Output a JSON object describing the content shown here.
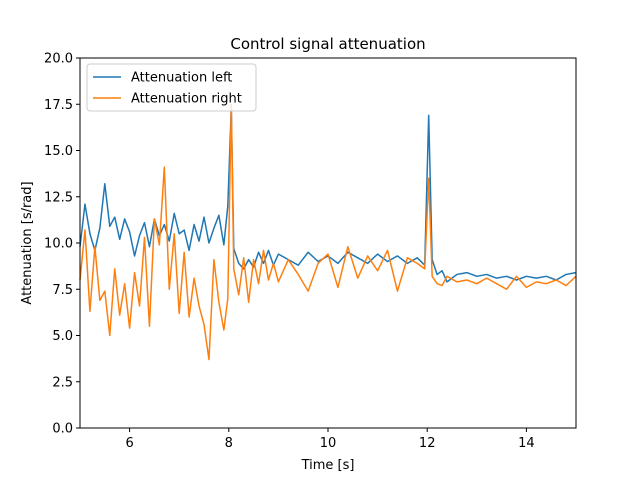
{
  "chart_data": {
    "type": "line",
    "title": "Control signal attenuation",
    "xlabel": "Time [s]",
    "ylabel": "Attenuation [s/rad]",
    "xlim": [
      5,
      15
    ],
    "ylim": [
      0,
      20
    ],
    "xticks": [
      6,
      8,
      10,
      12,
      14
    ],
    "xtick_labels": [
      "6",
      "8",
      "10",
      "12",
      "14"
    ],
    "yticks": [
      0,
      2.5,
      5,
      7.5,
      10,
      12.5,
      15,
      17.5,
      20
    ],
    "ytick_labels": [
      "0.0",
      "2.5",
      "5.0",
      "7.5",
      "10.0",
      "12.5",
      "15.0",
      "17.5",
      "20.0"
    ],
    "grid": false,
    "legend_position": "top-left",
    "series": [
      {
        "name": "Attenuation left",
        "color": "#1f77b4",
        "x": [
          5.0,
          5.1,
          5.2,
          5.3,
          5.4,
          5.5,
          5.6,
          5.7,
          5.8,
          5.9,
          6.0,
          6.1,
          6.2,
          6.3,
          6.4,
          6.5,
          6.6,
          6.7,
          6.8,
          6.9,
          7.0,
          7.1,
          7.2,
          7.3,
          7.4,
          7.5,
          7.6,
          7.7,
          7.8,
          7.9,
          7.98,
          8.05,
          8.1,
          8.2,
          8.3,
          8.4,
          8.5,
          8.6,
          8.7,
          8.8,
          8.9,
          9.0,
          9.2,
          9.4,
          9.6,
          9.8,
          10.0,
          10.2,
          10.4,
          10.6,
          10.8,
          11.0,
          11.2,
          11.4,
          11.6,
          11.8,
          11.95,
          12.03,
          12.1,
          12.2,
          12.3,
          12.4,
          12.6,
          12.8,
          13.0,
          13.2,
          13.4,
          13.6,
          13.8,
          14.0,
          14.2,
          14.4,
          14.6,
          14.8,
          15.0
        ],
        "y": [
          9.8,
          12.1,
          10.5,
          9.6,
          10.8,
          13.2,
          10.9,
          11.4,
          10.2,
          11.3,
          10.6,
          9.3,
          10.4,
          11.1,
          9.8,
          11.3,
          10.4,
          11.0,
          10.1,
          11.6,
          10.5,
          10.7,
          9.6,
          11.0,
          10.1,
          11.4,
          10.0,
          10.8,
          11.5,
          9.9,
          12.0,
          17.3,
          9.7,
          8.9,
          8.6,
          9.1,
          8.7,
          9.5,
          8.9,
          9.6,
          8.8,
          9.4,
          9.1,
          8.8,
          9.5,
          9.0,
          9.3,
          8.9,
          9.5,
          9.2,
          8.9,
          9.4,
          9.0,
          9.3,
          8.9,
          9.2,
          8.8,
          16.9,
          9.1,
          8.3,
          8.5,
          7.9,
          8.3,
          8.4,
          8.2,
          8.3,
          8.1,
          8.2,
          8.0,
          8.2,
          8.1,
          8.2,
          8.0,
          8.3,
          8.4
        ]
      },
      {
        "name": "Attenuation right",
        "color": "#ff7f0e",
        "x": [
          5.0,
          5.1,
          5.2,
          5.3,
          5.4,
          5.5,
          5.6,
          5.7,
          5.8,
          5.9,
          6.0,
          6.1,
          6.2,
          6.3,
          6.4,
          6.5,
          6.6,
          6.7,
          6.8,
          6.9,
          7.0,
          7.1,
          7.2,
          7.3,
          7.4,
          7.5,
          7.6,
          7.7,
          7.8,
          7.9,
          7.98,
          8.05,
          8.1,
          8.2,
          8.3,
          8.4,
          8.5,
          8.6,
          8.7,
          8.8,
          8.9,
          9.0,
          9.2,
          9.4,
          9.6,
          9.8,
          10.0,
          10.2,
          10.4,
          10.6,
          10.8,
          11.0,
          11.2,
          11.4,
          11.6,
          11.8,
          11.95,
          12.03,
          12.1,
          12.2,
          12.3,
          12.4,
          12.6,
          12.8,
          13.0,
          13.2,
          13.4,
          13.6,
          13.8,
          14.0,
          14.2,
          14.4,
          14.6,
          14.8,
          15.0
        ],
        "y": [
          8.0,
          10.7,
          6.3,
          9.8,
          6.9,
          7.4,
          5.0,
          8.6,
          6.1,
          7.8,
          5.4,
          8.4,
          6.6,
          10.3,
          5.5,
          11.3,
          9.9,
          14.1,
          7.5,
          10.5,
          6.2,
          9.5,
          6.0,
          8.1,
          6.6,
          5.6,
          3.7,
          9.1,
          6.8,
          5.3,
          7.0,
          17.5,
          8.6,
          7.2,
          9.2,
          6.8,
          9.1,
          7.8,
          9.6,
          8.0,
          8.9,
          7.9,
          9.1,
          8.3,
          7.4,
          8.9,
          9.4,
          7.6,
          9.8,
          8.1,
          9.3,
          8.5,
          9.6,
          7.4,
          9.2,
          8.9,
          8.6,
          13.5,
          8.2,
          7.8,
          7.7,
          8.2,
          7.9,
          8.0,
          7.8,
          8.1,
          7.8,
          7.5,
          8.2,
          7.6,
          7.9,
          7.8,
          8.0,
          7.7,
          8.2
        ]
      }
    ]
  }
}
